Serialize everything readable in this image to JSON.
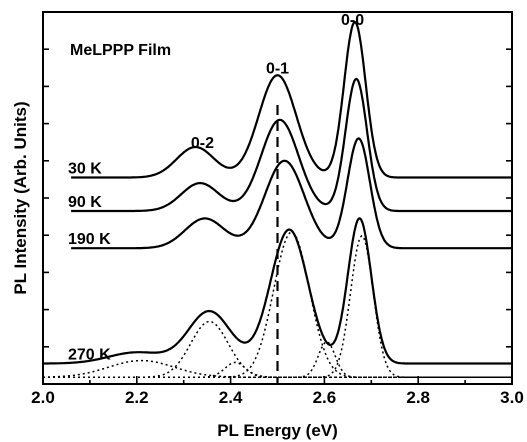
{
  "chart_data": {
    "type": "line",
    "title": "",
    "annotation": "MeLPPP Film",
    "xlabel": "PL Energy (eV)",
    "ylabel": "PL Intensity (Arb. Units)",
    "xlim": [
      2.0,
      3.0
    ],
    "ylim": [
      0,
      1
    ],
    "x_ticks": [
      "2.0",
      "2.2",
      "2.4",
      "2.6",
      "2.8",
      "3.0"
    ],
    "peak_labels": [
      {
        "text": "0-0",
        "x": 2.66,
        "y": 0.965
      },
      {
        "text": "0-1",
        "x": 2.5,
        "y": 0.835
      },
      {
        "text": "0-2",
        "x": 2.34,
        "y": 0.635
      }
    ],
    "dashed_marker_x": 2.5,
    "series": [
      {
        "name": "30 K",
        "baseline": 0.555,
        "peaks": [
          {
            "center": 2.325,
            "height": 0.082,
            "width": 0.04
          },
          {
            "center": 2.5,
            "height": 0.275,
            "width": 0.04
          },
          {
            "center": 2.665,
            "height": 0.418,
            "width": 0.023
          }
        ],
        "tail": 0.055
      },
      {
        "name": "90 K",
        "baseline": 0.465,
        "peaks": [
          {
            "center": 2.335,
            "height": 0.075,
            "width": 0.04
          },
          {
            "center": 2.505,
            "height": 0.245,
            "width": 0.04
          },
          {
            "center": 2.668,
            "height": 0.355,
            "width": 0.023
          }
        ],
        "tail": 0.04
      },
      {
        "name": "190 K",
        "baseline": 0.365,
        "peaks": [
          {
            "center": 2.345,
            "height": 0.08,
            "width": 0.042
          },
          {
            "center": 2.515,
            "height": 0.235,
            "width": 0.042
          },
          {
            "center": 2.673,
            "height": 0.295,
            "width": 0.024
          }
        ],
        "tail": 0.045
      },
      {
        "name": "270 K",
        "baseline": 0.055,
        "peaks": [
          {
            "center": 2.2,
            "height": 0.03,
            "width": 0.06
          },
          {
            "center": 2.355,
            "height": 0.14,
            "width": 0.045
          },
          {
            "center": 2.525,
            "height": 0.36,
            "width": 0.04
          },
          {
            "center": 2.675,
            "height": 0.39,
            "width": 0.025
          }
        ],
        "tail": 0.025
      }
    ],
    "components_270K": [
      {
        "center": 2.21,
        "height": 0.045,
        "width": 0.07
      },
      {
        "center": 2.355,
        "height": 0.15,
        "width": 0.04
      },
      {
        "center": 2.41,
        "height": 0.04,
        "width": 0.022
      },
      {
        "center": 2.53,
        "height": 0.39,
        "width": 0.038
      },
      {
        "center": 2.605,
        "height": 0.095,
        "width": 0.018
      },
      {
        "center": 2.68,
        "height": 0.38,
        "width": 0.024
      }
    ]
  }
}
